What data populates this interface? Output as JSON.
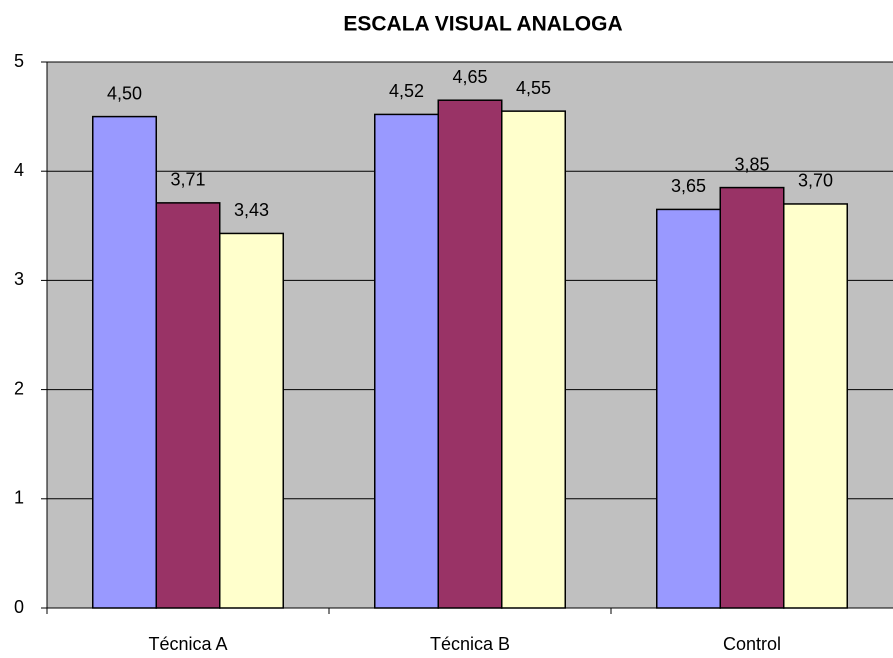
{
  "chart_data": {
    "type": "bar",
    "title": "ESCALA VISUAL ANALOGA",
    "categories": [
      "Técnica A",
      "Técnica B",
      "Control"
    ],
    "series": [
      {
        "color": "#9999ff",
        "values": [
          4.5,
          4.52,
          3.65
        ],
        "value_labels": [
          "4,50",
          "4,52",
          "3,65"
        ]
      },
      {
        "color": "#993366",
        "values": [
          3.71,
          4.65,
          3.85
        ],
        "value_labels": [
          "3,71",
          "4,65",
          "3,85"
        ]
      },
      {
        "color": "#ffffcc",
        "values": [
          3.43,
          4.55,
          3.7
        ],
        "value_labels": [
          "3,43",
          "4,55",
          "3,70"
        ]
      }
    ],
    "ylim": [
      0,
      5
    ],
    "yticks": [
      0,
      1,
      2,
      3,
      4,
      5
    ],
    "grid": true
  }
}
